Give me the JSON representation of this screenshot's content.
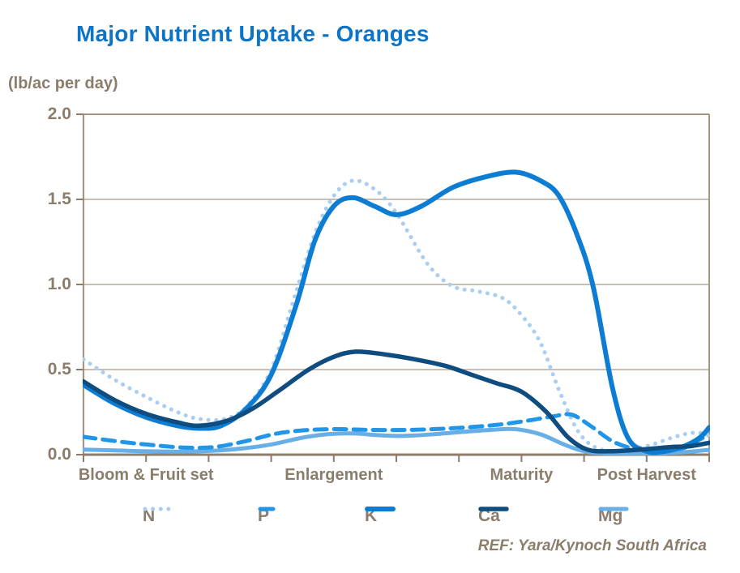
{
  "title": "Major Nutrient Uptake - Oranges",
  "y_axis_unit": "(lb/ac per day)",
  "footer": "REF: Yara/Kynoch South Africa",
  "colors": {
    "title_blue": "#0d74c6",
    "text_brown": "#8b7d6b",
    "gridline": "#b5aa9b",
    "frame": "#a59684",
    "axis": "#8c7c69",
    "series_n": "#a9cef2",
    "series_p": "#2196e8",
    "series_k": "#0d7dd4",
    "series_ca": "#0f4d80",
    "series_mg": "#68afe8"
  },
  "chart_data": {
    "type": "line",
    "title": "Major Nutrient Uptake - Oranges",
    "xlabel": "",
    "ylabel": "(lb/ac per day)",
    "ylim": [
      0,
      2
    ],
    "xlim": [
      0,
      10
    ],
    "grid": true,
    "legend_position": "bottom",
    "yticks": [
      {
        "label": "2.0",
        "value": 2.0
      },
      {
        "label": "1.5",
        "value": 1.5
      },
      {
        "label": "1.0",
        "value": 1.0
      },
      {
        "label": "0.5",
        "value": 0.5
      },
      {
        "label": "0.0",
        "value": 0.0
      }
    ],
    "x_tick_positions": [
      0,
      1,
      2,
      3,
      4,
      5,
      6,
      7,
      8,
      9,
      10
    ],
    "x_categories": [
      {
        "label": "Bloom & Fruit set",
        "t": 1
      },
      {
        "label": "Enlargement",
        "t": 4
      },
      {
        "label": "Maturity",
        "t": 7
      },
      {
        "label": "Post Harvest",
        "t": 9
      }
    ],
    "series": [
      {
        "name": "N",
        "style": "dotted",
        "color": "#a9cef2",
        "width": 5,
        "points": [
          [
            0,
            0.56
          ],
          [
            0.5,
            0.44
          ],
          [
            1,
            0.34
          ],
          [
            1.5,
            0.25
          ],
          [
            1.85,
            0.21
          ],
          [
            2.25,
            0.21
          ],
          [
            2.6,
            0.28
          ],
          [
            3,
            0.5
          ],
          [
            3.35,
            0.9
          ],
          [
            3.7,
            1.3
          ],
          [
            4,
            1.52
          ],
          [
            4.3,
            1.61
          ],
          [
            4.65,
            1.56
          ],
          [
            5,
            1.42
          ],
          [
            5.5,
            1.12
          ],
          [
            5.9,
            0.99
          ],
          [
            6.3,
            0.96
          ],
          [
            6.7,
            0.92
          ],
          [
            7,
            0.82
          ],
          [
            7.3,
            0.66
          ],
          [
            7.6,
            0.38
          ],
          [
            7.9,
            0.14
          ],
          [
            8.2,
            0.04
          ],
          [
            8.6,
            0.02
          ],
          [
            9,
            0.05
          ],
          [
            9.5,
            0.11
          ],
          [
            9.8,
            0.13
          ],
          [
            10,
            0.11
          ]
        ]
      },
      {
        "name": "P",
        "style": "dashed",
        "color": "#2196e8",
        "width": 5,
        "points": [
          [
            0,
            0.105
          ],
          [
            0.5,
            0.08
          ],
          [
            1,
            0.06
          ],
          [
            1.6,
            0.042
          ],
          [
            2.1,
            0.045
          ],
          [
            2.6,
            0.08
          ],
          [
            3.1,
            0.125
          ],
          [
            3.6,
            0.145
          ],
          [
            4.1,
            0.15
          ],
          [
            4.6,
            0.145
          ],
          [
            5.1,
            0.145
          ],
          [
            5.6,
            0.15
          ],
          [
            6.1,
            0.16
          ],
          [
            6.6,
            0.175
          ],
          [
            7.1,
            0.2
          ],
          [
            7.5,
            0.225
          ],
          [
            7.8,
            0.235
          ],
          [
            8.1,
            0.17
          ],
          [
            8.45,
            0.08
          ],
          [
            8.8,
            0.035
          ],
          [
            9.2,
            0.025
          ],
          [
            9.6,
            0.04
          ],
          [
            9.85,
            0.09
          ],
          [
            10,
            0.11
          ]
        ]
      },
      {
        "name": "K",
        "style": "solid",
        "color": "#0d7dd4",
        "width": 6,
        "points": [
          [
            0,
            0.41
          ],
          [
            0.5,
            0.3
          ],
          [
            1,
            0.22
          ],
          [
            1.5,
            0.17
          ],
          [
            1.85,
            0.155
          ],
          [
            2.2,
            0.17
          ],
          [
            2.6,
            0.27
          ],
          [
            3,
            0.47
          ],
          [
            3.4,
            0.88
          ],
          [
            3.7,
            1.26
          ],
          [
            4,
            1.46
          ],
          [
            4.3,
            1.51
          ],
          [
            4.65,
            1.46
          ],
          [
            5,
            1.41
          ],
          [
            5.4,
            1.46
          ],
          [
            5.9,
            1.57
          ],
          [
            6.4,
            1.63
          ],
          [
            6.9,
            1.66
          ],
          [
            7.3,
            1.61
          ],
          [
            7.6,
            1.52
          ],
          [
            7.9,
            1.28
          ],
          [
            8.15,
            0.98
          ],
          [
            8.45,
            0.4
          ],
          [
            8.7,
            0.1
          ],
          [
            9,
            0.02
          ],
          [
            9.3,
            0.02
          ],
          [
            9.6,
            0.05
          ],
          [
            9.85,
            0.1
          ],
          [
            10,
            0.16
          ]
        ]
      },
      {
        "name": "Ca",
        "style": "solid",
        "color": "#0f4d80",
        "width": 5.5,
        "points": [
          [
            0,
            0.43
          ],
          [
            0.5,
            0.32
          ],
          [
            1,
            0.24
          ],
          [
            1.5,
            0.19
          ],
          [
            1.84,
            0.17
          ],
          [
            2.3,
            0.2
          ],
          [
            2.7,
            0.27
          ],
          [
            3.1,
            0.37
          ],
          [
            3.6,
            0.5
          ],
          [
            4,
            0.575
          ],
          [
            4.35,
            0.605
          ],
          [
            4.8,
            0.59
          ],
          [
            5.3,
            0.56
          ],
          [
            5.8,
            0.52
          ],
          [
            6.2,
            0.47
          ],
          [
            6.6,
            0.42
          ],
          [
            7,
            0.37
          ],
          [
            7.4,
            0.25
          ],
          [
            7.75,
            0.1
          ],
          [
            8.05,
            0.03
          ],
          [
            8.4,
            0.02
          ],
          [
            8.9,
            0.03
          ],
          [
            9.4,
            0.045
          ],
          [
            9.7,
            0.05
          ],
          [
            10,
            0.07
          ]
        ]
      },
      {
        "name": "Mg",
        "style": "solid",
        "color": "#68afe8",
        "width": 5,
        "points": [
          [
            0,
            0.03
          ],
          [
            0.5,
            0.025
          ],
          [
            1,
            0.02
          ],
          [
            1.5,
            0.018
          ],
          [
            2,
            0.022
          ],
          [
            2.5,
            0.035
          ],
          [
            3,
            0.06
          ],
          [
            3.5,
            0.1
          ],
          [
            3.9,
            0.12
          ],
          [
            4.3,
            0.125
          ],
          [
            4.7,
            0.115
          ],
          [
            5.1,
            0.11
          ],
          [
            5.6,
            0.12
          ],
          [
            6.1,
            0.135
          ],
          [
            6.5,
            0.145
          ],
          [
            6.9,
            0.15
          ],
          [
            7.3,
            0.12
          ],
          [
            7.65,
            0.065
          ],
          [
            7.9,
            0.03
          ],
          [
            8.15,
            0.012
          ],
          [
            8.6,
            0.008
          ],
          [
            9.1,
            0.008
          ],
          [
            9.6,
            0.015
          ],
          [
            10,
            0.028
          ]
        ]
      }
    ]
  }
}
